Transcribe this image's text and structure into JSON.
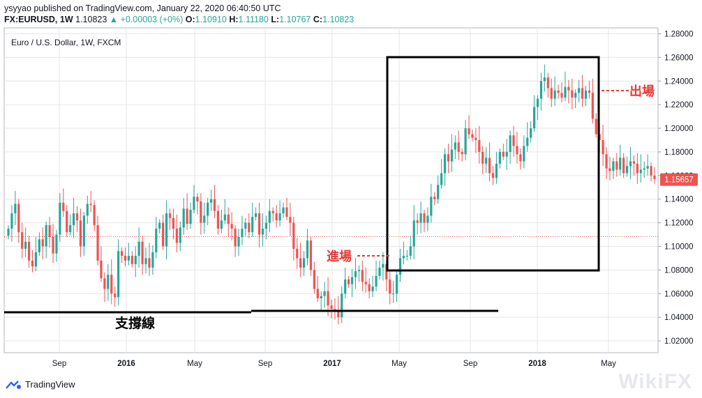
{
  "header": {
    "line1": "ysyyao published on TradingView.com, January 22, 2020 06:40:50 UTC",
    "symbol": "FX:EURUSD, 1W",
    "last": "1.10823",
    "change": "+0.00003 (+0%)",
    "o_label": "O:",
    "o_value": "1.10910",
    "h_label": "H:",
    "h_value": "1.11180",
    "l_label": "L:",
    "l_value": "1.10767",
    "c_label": "C:",
    "c_value": "1.10823"
  },
  "footer": {
    "brand": "TradingView"
  },
  "watermark": "WikiFX",
  "colors": {
    "up": "#26a69a",
    "down": "#ef5350",
    "annotation": "#e53935",
    "grid": "#e6e6e6",
    "priceTag": "#ef5350"
  },
  "chart_data": {
    "type": "candlestick",
    "title": "Euro / U.S. Dollar, 1W, FXCM",
    "y_ticks": [
      1.28,
      1.26,
      1.24,
      1.22,
      1.2,
      1.18,
      1.16,
      1.14,
      1.12,
      1.1,
      1.08,
      1.06,
      1.04,
      1.02
    ],
    "y_tick_labels": [
      "1.28000",
      "1.26000",
      "1.24000",
      "1.22000",
      "1.20000",
      "1.18000",
      "1.16000",
      "1.14000",
      "1.12000",
      "1.10000",
      "1.08000",
      "1.06000",
      "1.04000",
      "1.02000"
    ],
    "ylim": [
      1.01,
      1.285
    ],
    "x_ticks": [
      "Sep",
      "2016",
      "May",
      "Sep",
      "2017",
      "May",
      "Sep",
      "2018",
      "May"
    ],
    "x_tick_bold": [
      false,
      true,
      false,
      false,
      true,
      false,
      false,
      true,
      false
    ],
    "current_price_label": "1.15657",
    "current_price": 1.15657,
    "reference_line": 1.10823,
    "closes": [
      1.115,
      1.128,
      1.136,
      1.112,
      1.098,
      1.104,
      1.088,
      1.083,
      1.095,
      1.106,
      1.1,
      1.118,
      1.108,
      1.094,
      1.11,
      1.137,
      1.13,
      1.112,
      1.118,
      1.128,
      1.122,
      1.1,
      1.126,
      1.136,
      1.135,
      1.118,
      1.088,
      1.073,
      1.064,
      1.076,
      1.06,
      1.057,
      1.096,
      1.092,
      1.088,
      1.092,
      1.085,
      1.092,
      1.104,
      1.085,
      1.09,
      1.082,
      1.095,
      1.115,
      1.12,
      1.1,
      1.128,
      1.124,
      1.115,
      1.103,
      1.116,
      1.132,
      1.119,
      1.131,
      1.142,
      1.138,
      1.12,
      1.126,
      1.137,
      1.14,
      1.13,
      1.115,
      1.122,
      1.127,
      1.119,
      1.115,
      1.1,
      1.108,
      1.115,
      1.12,
      1.112,
      1.125,
      1.128,
      1.11,
      1.115,
      1.12,
      1.13,
      1.128,
      1.122,
      1.128,
      1.133,
      1.125,
      1.12,
      1.098,
      1.09,
      1.082,
      1.09,
      1.105,
      1.08,
      1.064,
      1.056,
      1.058,
      1.062,
      1.05,
      1.047,
      1.045,
      1.04,
      1.06,
      1.072,
      1.068,
      1.074,
      1.079,
      1.08,
      1.07,
      1.068,
      1.062,
      1.066,
      1.075,
      1.082,
      1.085,
      1.072,
      1.06,
      1.06,
      1.076,
      1.09,
      1.092,
      1.092,
      1.1,
      1.122,
      1.12,
      1.128,
      1.12,
      1.126,
      1.142,
      1.14,
      1.152,
      1.162,
      1.178,
      1.172,
      1.182,
      1.188,
      1.18,
      1.178,
      1.2,
      1.195,
      1.192,
      1.19,
      1.18,
      1.17,
      1.175,
      1.162,
      1.158,
      1.17,
      1.18,
      1.176,
      1.18,
      1.194,
      1.185,
      1.178,
      1.172,
      1.185,
      1.192,
      1.2,
      1.218,
      1.225,
      1.24,
      1.243,
      1.234,
      1.225,
      1.232,
      1.23,
      1.226,
      1.235,
      1.232,
      1.226,
      1.23,
      1.234,
      1.225,
      1.232,
      1.23,
      1.208,
      1.195,
      1.19,
      1.178,
      1.166,
      1.164,
      1.172,
      1.165,
      1.175,
      1.162,
      1.168,
      1.172,
      1.17,
      1.162,
      1.165,
      1.166,
      1.168,
      1.16,
      1.157
    ]
  },
  "annotations": {
    "support": "支撐線",
    "entry": "進場",
    "exit": "出場"
  }
}
